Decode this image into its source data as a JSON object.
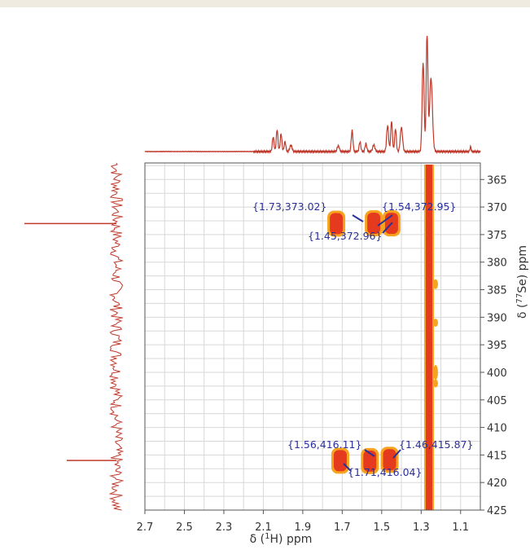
{
  "header_band_color": "#efebe0",
  "chart_data": {
    "type": "heatmap",
    "title": "",
    "xlabel": "δ (¹H) ppm",
    "ylabel": "δ (⁷⁷Se) ppm",
    "xlim": [
      2.7,
      1.0
    ],
    "ylim": [
      425,
      362
    ],
    "x_ticks": [
      "2.7",
      "2.5",
      "2.3",
      "2.1",
      "1.9",
      "1.7",
      "1.5",
      "1.3",
      "1.1"
    ],
    "y_ticks": [
      "365",
      "370",
      "375",
      "380",
      "385",
      "390",
      "395",
      "400",
      "405",
      "410",
      "415",
      "420",
      "425"
    ],
    "grid": true,
    "colors": {
      "spectrum": "#c0392b",
      "peak_core": "#e63a1e",
      "peak_edge": "#f7a320",
      "annotation": "#2a2f9a",
      "grid": "#d8d8d8"
    },
    "cross_peaks": [
      {
        "x": 1.73,
        "y": 373.02,
        "label": "{1.73,373.02}"
      },
      {
        "x": 1.54,
        "y": 372.95,
        "label": "{1.54,372.95}"
      },
      {
        "x": 1.45,
        "y": 372.96,
        "label": "{1.45,372.96}"
      },
      {
        "x": 1.56,
        "y": 416.11,
        "label": "{1.56,416.11}"
      },
      {
        "x": 1.46,
        "y": 415.87,
        "label": "{1.46,415.87}"
      },
      {
        "x": 1.71,
        "y": 416.04,
        "label": "{1.71,416.04}"
      }
    ],
    "artifact_streak_x": 1.26,
    "top_projection_peaks_ppm": [
      2.05,
      2.03,
      2.01,
      1.99,
      1.96,
      1.72,
      1.65,
      1.61,
      1.58,
      1.54,
      1.47,
      1.45,
      1.43,
      1.4,
      1.29,
      1.27,
      1.25,
      1.05
    ],
    "left_projection_peaks_ppm": [
      373.0,
      416.0
    ]
  }
}
